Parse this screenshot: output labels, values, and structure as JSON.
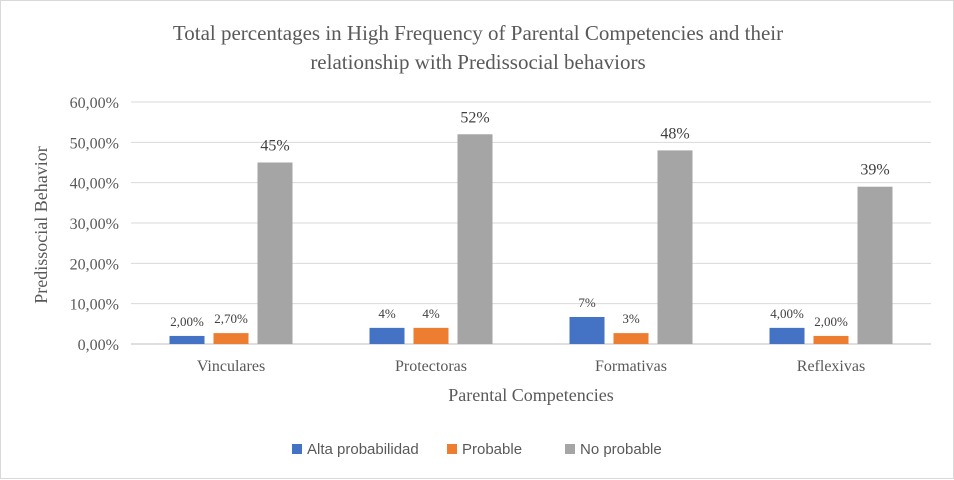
{
  "chart_data": {
    "type": "bar",
    "title_line1": "Total percentages in High Frequency of Parental Competencies and their",
    "title_line2": "relationship with Predissocial behaviors",
    "xlabel": "Parental Competencies",
    "ylabel": "Predissocial Behavior",
    "ylim": [
      0,
      60
    ],
    "yticks": [
      "0,00%",
      "10,00%",
      "20,00%",
      "30,00%",
      "40,00%",
      "50,00%",
      "60,00%"
    ],
    "grid": true,
    "legend_position": "bottom",
    "categories": [
      "Vinculares",
      "Protectoras",
      "Formativas",
      "Reflexivas"
    ],
    "series": [
      {
        "name": "Alta probabilidad",
        "color": "#4472c4",
        "values": [
          2.0,
          4.0,
          6.7,
          4.0
        ],
        "labels": [
          "2,00%",
          "4%",
          "7%",
          "4,00%"
        ],
        "label_style": "small"
      },
      {
        "name": "Probable",
        "color": "#ed7d31",
        "values": [
          2.7,
          4.0,
          2.7,
          2.0
        ],
        "labels": [
          "2,70%",
          "4%",
          "3%",
          "2,00%"
        ],
        "label_style": "small"
      },
      {
        "name": "No probable",
        "color": "#a5a5a5",
        "values": [
          45,
          52,
          48,
          39
        ],
        "labels": [
          "45%",
          "52%",
          "48%",
          "39%"
        ],
        "label_style": "large"
      }
    ]
  }
}
